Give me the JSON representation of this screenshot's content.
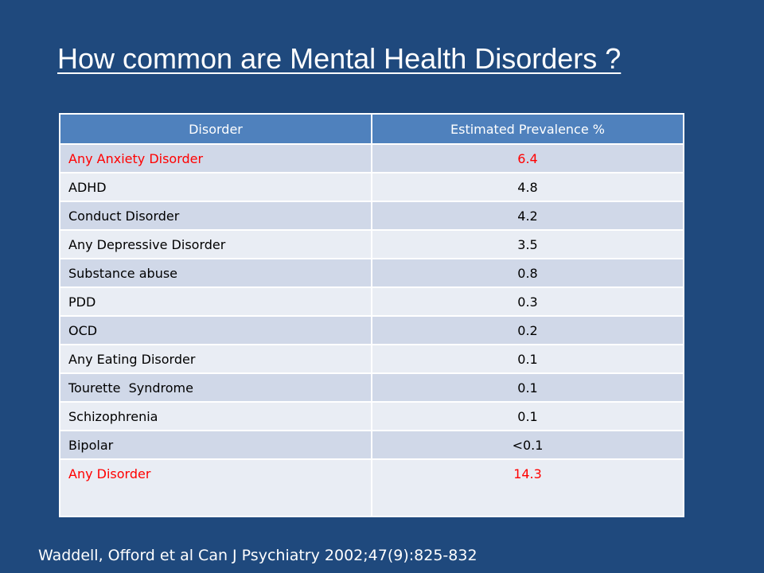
{
  "slide": {
    "title": "How common are Mental Health Disorders ?",
    "citation": "Waddell, Offord et al Can J Psychiatry 2002;47(9):825-832"
  },
  "table": {
    "headers": {
      "disorder": "Disorder",
      "prevalence": "Estimated Prevalence %"
    },
    "rows": [
      {
        "disorder": "Any Anxiety Disorder",
        "prevalence": "6.4"
      },
      {
        "disorder": "ADHD",
        "prevalence": "4.8"
      },
      {
        "disorder": "Conduct Disorder",
        "prevalence": "4.2"
      },
      {
        "disorder": "Any Depressive Disorder",
        "prevalence": "3.5"
      },
      {
        "disorder": "Substance abuse",
        "prevalence": "0.8"
      },
      {
        "disorder": "PDD",
        "prevalence": "0.3"
      },
      {
        "disorder": "OCD",
        "prevalence": "0.2"
      },
      {
        "disorder": "Any Eating Disorder",
        "prevalence": "0.1"
      },
      {
        "disorder": "Tourette  Syndrome",
        "prevalence": "0.1"
      },
      {
        "disorder": "Schizophrenia",
        "prevalence": "0.1"
      },
      {
        "disorder": "Bipolar",
        "prevalence": "<0.1"
      },
      {
        "disorder": "Any Disorder",
        "prevalence": "14.3"
      }
    ]
  },
  "colors": {
    "background": "#1f497d",
    "header": "#4f81bd",
    "row_odd": "#d0d8e8",
    "row_even": "#e9edf4",
    "highlight_text": "#ff0000"
  }
}
